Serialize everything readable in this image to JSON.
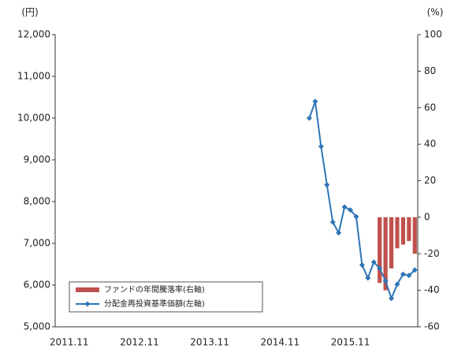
{
  "chart_data": {
    "type": "combo",
    "y_label": "(円)",
    "y2_label": "(%)",
    "categories": [
      "2011.11",
      null,
      null,
      null,
      null,
      null,
      null,
      null,
      null,
      null,
      null,
      null,
      "2012.11",
      null,
      null,
      null,
      null,
      null,
      null,
      null,
      null,
      null,
      null,
      null,
      "2013.11",
      null,
      null,
      null,
      null,
      null,
      null,
      null,
      null,
      null,
      null,
      null,
      "2014.11",
      null,
      null,
      null,
      null,
      null,
      null,
      null,
      null,
      null,
      null,
      null,
      "2015.11",
      null,
      null,
      null,
      null,
      null,
      null,
      null,
      null,
      null,
      null,
      null
    ],
    "series": [
      {
        "name": "ファンドの年間騰落率(右軸)",
        "type": "bar",
        "axis": "y2",
        "color": "#c0504d",
        "values": [
          null,
          null,
          null,
          null,
          null,
          null,
          null,
          null,
          null,
          null,
          null,
          null,
          null,
          null,
          null,
          null,
          null,
          null,
          null,
          null,
          null,
          null,
          null,
          null,
          null,
          null,
          null,
          null,
          null,
          null,
          null,
          null,
          null,
          null,
          null,
          null,
          null,
          null,
          null,
          null,
          null,
          null,
          null,
          null,
          null,
          null,
          null,
          null,
          null,
          null,
          null,
          null,
          null,
          -36,
          -40,
          -28,
          -17,
          -15,
          -13,
          -20
        ]
      },
      {
        "name": "分配金再投資基準価額(左軸)",
        "type": "line",
        "color": "#2e75b6",
        "values": [
          null,
          null,
          null,
          null,
          null,
          null,
          null,
          null,
          null,
          null,
          null,
          null,
          null,
          null,
          null,
          null,
          null,
          null,
          null,
          null,
          null,
          null,
          null,
          null,
          null,
          null,
          null,
          null,
          null,
          null,
          null,
          null,
          null,
          null,
          null,
          null,
          null,
          null,
          null,
          null,
          null,
          10000,
          10400,
          9320,
          8400,
          7510,
          7250,
          7870,
          7800,
          7640,
          6480,
          6170,
          6550,
          6400,
          6100,
          5680,
          6020,
          6260,
          6230,
          6360
        ]
      }
    ],
    "ylim": [
      5000,
      12000
    ],
    "yticks": [
      {
        "value": 5000,
        "label": "5,000"
      },
      {
        "value": 6000,
        "label": "6,000"
      },
      {
        "value": 7000,
        "label": "7,000"
      },
      {
        "value": 8000,
        "label": "8,000"
      },
      {
        "value": 9000,
        "label": "9,000"
      },
      {
        "value": 10000,
        "label": "10,000"
      },
      {
        "value": 11000,
        "label": "11,000"
      },
      {
        "value": 12000,
        "label": "12,000"
      }
    ],
    "y2lim": [
      -60,
      100
    ],
    "y2ticks": [
      -60,
      -40,
      -20,
      0,
      20,
      40,
      60,
      80,
      100
    ],
    "legend": "lower-left"
  }
}
